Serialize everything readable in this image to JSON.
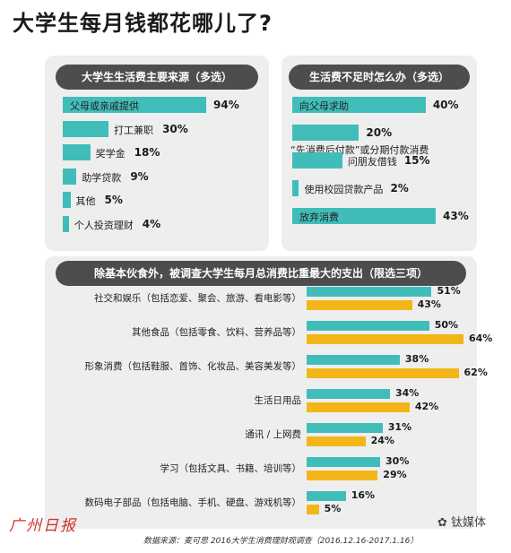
{
  "title": "大学生每月钱都花哪儿了?",
  "chart_data": [
    {
      "type": "bar",
      "title": "大学生生活费主要来源（多选）",
      "categories": [
        "父母或亲戚提供",
        "打工兼职",
        "奖学金",
        "助学贷款",
        "其他",
        "个人投资理财"
      ],
      "values": [
        94,
        30,
        18,
        9,
        5,
        4
      ],
      "labels": [
        "94%",
        "30%",
        "18%",
        "9%",
        "5%",
        "4%"
      ],
      "xlim": [
        0,
        100
      ],
      "color": "#41bdb9"
    },
    {
      "type": "bar",
      "title": "生活费不足时怎么办（多选）",
      "categories": [
        "向父母求助",
        "“先消费后付款”或分期付款消费",
        "问朋友借钱",
        "使用校园贷款产品",
        "放弃消费"
      ],
      "values": [
        40,
        20,
        15,
        2,
        43
      ],
      "labels": [
        "40%",
        "20%",
        "15%",
        "2%",
        "43%"
      ],
      "xlim": [
        0,
        100
      ],
      "color": "#41bdb9"
    },
    {
      "type": "bar",
      "title": "除基本伙食外，被调查大学生每月总消费比重最大的支出（限选三项）",
      "categories": [
        "社交和娱乐（包括恋爱、聚会、旅游、看电影等）",
        "其他食品（包括零食、饮料、营养品等）",
        "形象消费（包括鞋服、首饰、化妆品、美容美发等）",
        "生活日用品",
        "通讯 / 上网费",
        "学习（包括文具、书籍、培训等）",
        "数码电子部品（包括电脑、手机、硬盘、游戏机等）"
      ],
      "series": [
        {
          "values": [
            51,
            50,
            38,
            34,
            31,
            30,
            16
          ],
          "labels": [
            "51%",
            "50%",
            "38%",
            "34%",
            "31%",
            "30%",
            "16%"
          ],
          "color": "#41bdb9"
        },
        {
          "values": [
            43,
            64,
            62,
            42,
            24,
            29,
            5
          ],
          "labels": [
            "43%",
            "64%",
            "62%",
            "42%",
            "24%",
            "29%",
            "5%"
          ],
          "color": "#f3b619"
        }
      ],
      "xlim": [
        0,
        100
      ]
    }
  ],
  "source": "数据来源：麦可思 2016大学生消费理财观调查（2016.12.16-2017.1.16）",
  "logo_text": "广州日报",
  "watermark": "钛媒体"
}
